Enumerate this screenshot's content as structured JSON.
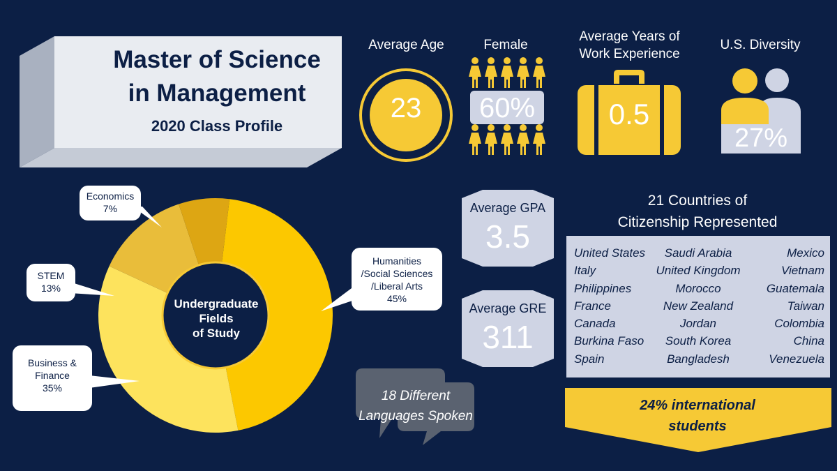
{
  "title": {
    "line1": "Master of Science",
    "line2": "in Management",
    "subtitle": "2020 Class Profile"
  },
  "stats": {
    "age": {
      "label": "Average Age",
      "value": "23"
    },
    "female": {
      "label": "Female",
      "value": "60%"
    },
    "work": {
      "label_line1": "Average Years of",
      "label_line2": "Work Experience",
      "value": "0.5"
    },
    "diversity": {
      "label": "U.S. Diversity",
      "value": "27%"
    },
    "gpa": {
      "label": "Average GPA",
      "value": "3.5"
    },
    "gre": {
      "label": "Average GRE",
      "value": "311"
    }
  },
  "languages": {
    "line1": "18 Different",
    "line2": "Languages Spoken"
  },
  "countries": {
    "title_line1": "21 Countries of",
    "title_line2": "Citizenship Represented",
    "col1": [
      "United States",
      "Italy",
      "Philippines",
      "France",
      "Canada",
      "Burkina Faso",
      "Spain"
    ],
    "col2": [
      "Saudi Arabia",
      "United Kingdom",
      "Morocco",
      "New Zealand",
      "Jordan",
      "South Korea",
      "Bangladesh"
    ],
    "col3": [
      "Mexico",
      "Vietnam",
      "Guatemala",
      "Taiwan",
      "Colombia",
      "China",
      "Venezuela"
    ],
    "international_line1": "24% international",
    "international_line2": "students"
  },
  "colors": {
    "background": "#0c1f45",
    "gold": "#f6c935",
    "light_panel": "#cfd4e4",
    "slice_humanities": "#fcc800",
    "slice_business": "#fde35d",
    "slice_stem": "#e9bd3a",
    "slice_economics": "#dda613"
  },
  "chart_data": {
    "type": "pie",
    "title": "Undergraduate Fields of Study",
    "center_label": [
      "Undergraduate",
      "Fields",
      "of Study"
    ],
    "slices": [
      {
        "label": "Humanities /Social Sciences /Liberal Arts",
        "label_lines": [
          "Humanities",
          "/Social Sciences",
          "/Liberal Arts"
        ],
        "value": 45,
        "value_text": "45%"
      },
      {
        "label": "Business & Finance",
        "label_lines": [
          "Business &",
          "Finance"
        ],
        "value": 35,
        "value_text": "35%"
      },
      {
        "label": "STEM",
        "label_lines": [
          "STEM"
        ],
        "value": 13,
        "value_text": "13%"
      },
      {
        "label": "Economics",
        "label_lines": [
          "Economics"
        ],
        "value": 7,
        "value_text": "7%"
      }
    ]
  }
}
